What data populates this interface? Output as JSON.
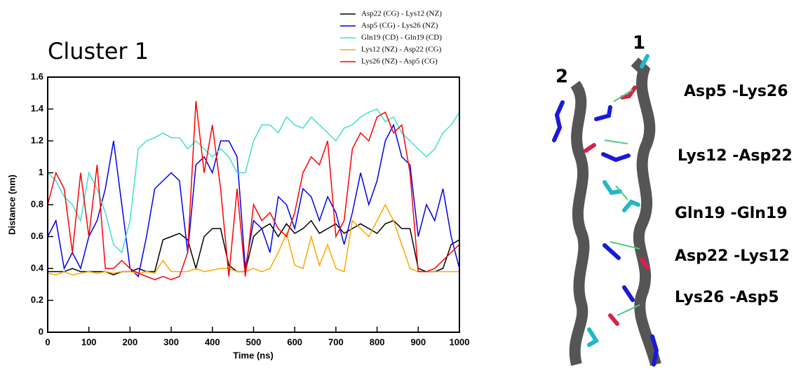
{
  "chart_data": {
    "type": "line",
    "title": "Cluster 1",
    "xlabel": "Time (ns)",
    "ylabel": "Distance (nm)",
    "x": [
      0,
      20,
      40,
      60,
      80,
      100,
      120,
      140,
      160,
      180,
      200,
      220,
      240,
      260,
      280,
      300,
      320,
      340,
      360,
      380,
      400,
      420,
      440,
      460,
      480,
      500,
      520,
      540,
      560,
      580,
      600,
      620,
      640,
      660,
      680,
      700,
      720,
      740,
      760,
      780,
      800,
      820,
      840,
      860,
      880,
      900,
      920,
      940,
      960,
      980,
      1000
    ],
    "xlim": [
      0,
      1000
    ],
    "xticks": [
      0,
      100,
      200,
      300,
      400,
      500,
      600,
      700,
      800,
      900,
      1000
    ],
    "ylim": [
      0,
      1.6
    ],
    "yticks": [
      0,
      0.2,
      0.4,
      0.6,
      0.8,
      1,
      1.2,
      1.4,
      1.6
    ],
    "legend": "top-right",
    "series": [
      {
        "name": "Asp22 (CG) - Lys12 (NZ)",
        "color": "#000000",
        "values": [
          0.38,
          0.38,
          0.38,
          0.4,
          0.38,
          0.38,
          0.38,
          0.38,
          0.36,
          0.38,
          0.38,
          0.4,
          0.38,
          0.38,
          0.58,
          0.6,
          0.62,
          0.58,
          0.4,
          0.6,
          0.65,
          0.65,
          0.42,
          0.38,
          0.38,
          0.6,
          0.65,
          0.68,
          0.6,
          0.68,
          0.62,
          0.65,
          0.7,
          0.62,
          0.65,
          0.68,
          0.62,
          0.65,
          0.68,
          0.65,
          0.62,
          0.68,
          0.7,
          0.65,
          0.65,
          0.4,
          0.38,
          0.38,
          0.4,
          0.55,
          0.58
        ]
      },
      {
        "name": "Asp5  (CG) - Lys26 (NZ)",
        "color": "#0000ee",
        "values": [
          0.6,
          0.7,
          0.4,
          0.5,
          0.4,
          0.6,
          0.7,
          0.9,
          1.2,
          0.8,
          0.4,
          0.35,
          0.6,
          0.9,
          0.95,
          1.0,
          0.95,
          0.5,
          1.05,
          1.1,
          1.0,
          1.2,
          1.2,
          1.1,
          0.4,
          0.7,
          0.65,
          0.5,
          0.85,
          0.8,
          0.65,
          0.9,
          0.85,
          0.7,
          0.85,
          0.75,
          0.55,
          0.75,
          1.0,
          0.8,
          0.95,
          1.2,
          1.3,
          1.1,
          1.05,
          0.6,
          0.8,
          0.7,
          0.9,
          0.6,
          0.4
        ]
      },
      {
        "name": "Gln19 (CD) - Gln19 (CD)",
        "color": "#40e0d0",
        "values": [
          1.0,
          0.95,
          0.85,
          0.8,
          0.7,
          1.0,
          0.9,
          0.75,
          0.55,
          0.5,
          0.7,
          1.15,
          1.2,
          1.22,
          1.25,
          1.22,
          1.22,
          1.15,
          1.2,
          1.15,
          1.1,
          1.15,
          1.1,
          1.0,
          1.0,
          1.2,
          1.3,
          1.3,
          1.25,
          1.35,
          1.3,
          1.28,
          1.35,
          1.3,
          1.25,
          1.2,
          1.28,
          1.3,
          1.35,
          1.38,
          1.4,
          1.32,
          1.35,
          1.25,
          1.2,
          1.15,
          1.1,
          1.15,
          1.25,
          1.3,
          1.38
        ]
      },
      {
        "name": "Lys12 (NZ) - Asp22 (CG)",
        "color": "#ffa500",
        "values": [
          0.37,
          0.36,
          0.38,
          0.36,
          0.37,
          0.38,
          0.37,
          0.38,
          0.37,
          0.38,
          0.38,
          0.37,
          0.38,
          0.37,
          0.45,
          0.38,
          0.38,
          0.38,
          0.4,
          0.38,
          0.39,
          0.4,
          0.4,
          0.38,
          0.38,
          0.4,
          0.38,
          0.4,
          0.5,
          0.62,
          0.42,
          0.4,
          0.6,
          0.42,
          0.55,
          0.4,
          0.38,
          0.7,
          0.65,
          0.6,
          0.7,
          0.8,
          0.7,
          0.55,
          0.4,
          0.38,
          0.38,
          0.38,
          0.38,
          0.38,
          0.38
        ]
      },
      {
        "name": "Lys26 (NZ) - Asp5 (CG)",
        "color": "#ff0000",
        "values": [
          0.8,
          1.0,
          0.9,
          0.5,
          1.0,
          0.6,
          1.05,
          0.4,
          0.4,
          0.45,
          0.4,
          0.37,
          0.35,
          0.33,
          0.35,
          0.33,
          0.35,
          0.5,
          1.45,
          1.0,
          1.3,
          0.9,
          0.35,
          0.9,
          0.35,
          0.8,
          0.7,
          0.75,
          0.65,
          0.6,
          0.75,
          1.0,
          1.1,
          1.05,
          1.2,
          0.6,
          0.7,
          1.15,
          1.25,
          1.2,
          1.35,
          1.38,
          1.25,
          1.3,
          1.0,
          0.38,
          0.38,
          0.4,
          0.45,
          0.5,
          0.55
        ]
      }
    ]
  },
  "structure": {
    "helix_labels": [
      "1",
      "2"
    ],
    "pair_labels": [
      "Asp5 -Lys26",
      "Lys12 -Asp22",
      "Gln19 -Gln19",
      "Asp22 -Lys12",
      "Lys26 -Asp5"
    ]
  }
}
